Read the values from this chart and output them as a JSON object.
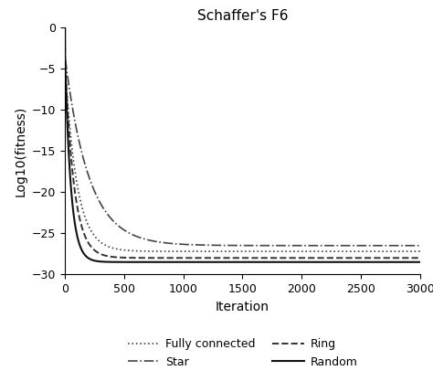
{
  "title": "Schaffer's F6",
  "xlabel": "Iteration",
  "ylabel": "Log10(fitness)",
  "xlim": [
    0,
    3000
  ],
  "ylim": [
    -30,
    0
  ],
  "yticks": [
    0,
    -5,
    -10,
    -15,
    -20,
    -25,
    -30
  ],
  "xticks": [
    0,
    500,
    1000,
    1500,
    2000,
    2500,
    3000
  ],
  "curves": {
    "fully_connected": {
      "label": "Fully connected",
      "linestyle": "dotted",
      "color": "#444444",
      "linewidth": 1.2,
      "plateau": -27.2,
      "rate": 0.01,
      "initial": -4.5
    },
    "ring": {
      "label": "Ring",
      "linestyle": "dashed",
      "color": "#333333",
      "linewidth": 1.4,
      "plateau": -28.0,
      "rate": 0.013,
      "initial": -4.0
    },
    "star": {
      "label": "Star",
      "linestyle": "dashdot",
      "color": "#444444",
      "linewidth": 1.2,
      "plateau": -26.5,
      "rate": 0.005,
      "initial": -3.5
    },
    "random": {
      "label": "Random",
      "linestyle": "solid",
      "color": "#111111",
      "linewidth": 1.5,
      "plateau": -28.5,
      "rate": 0.02,
      "initial": -3.5
    }
  },
  "background_color": "#ffffff",
  "title_fontsize": 11,
  "label_fontsize": 10,
  "tick_fontsize": 9,
  "legend_fontsize": 9
}
